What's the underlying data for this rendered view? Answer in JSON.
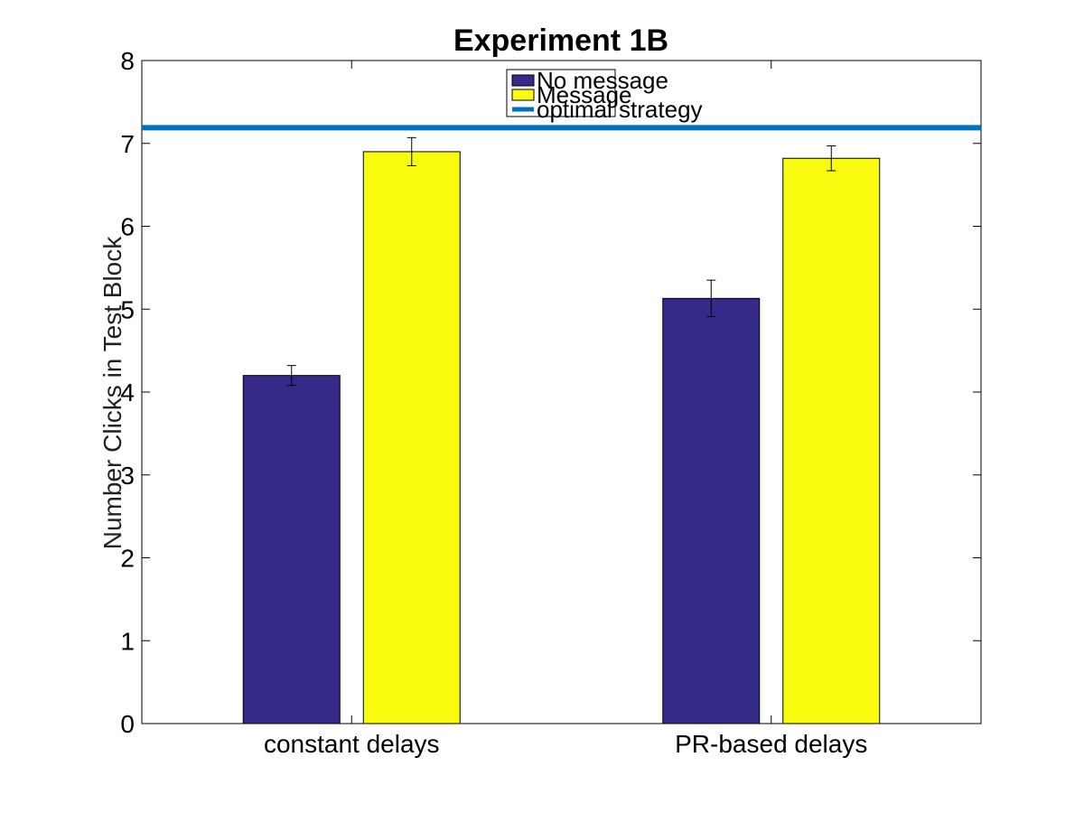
{
  "chart_data": {
    "type": "bar",
    "title": "Experiment 1B",
    "xlabel": "",
    "ylabel": "Number Clicks in Test Block",
    "categories": [
      "constant delays",
      "PR-based delays"
    ],
    "ylim": [
      0,
      8
    ],
    "yticks": [
      0,
      1,
      2,
      3,
      4,
      5,
      6,
      7,
      8
    ],
    "grid": false,
    "legend_position": "top-center",
    "series": [
      {
        "name": "No message",
        "color": "#352a87",
        "values": [
          4.2,
          5.13
        ],
        "errors": [
          0.12,
          0.22
        ]
      },
      {
        "name": "Message",
        "color": "#f9fb0e",
        "values": [
          6.9,
          6.82
        ],
        "errors": [
          0.17,
          0.15
        ]
      }
    ],
    "reference_line": {
      "name": "optimal strategy",
      "value": 7.19,
      "color": "#0072bd"
    }
  }
}
